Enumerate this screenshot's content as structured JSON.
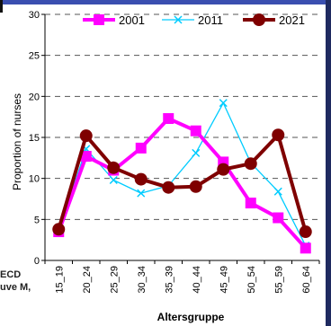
{
  "chart_data": {
    "type": "line",
    "title": "",
    "xlabel": "Altersgruppe",
    "ylabel": "Proportion of nurses",
    "ylim": [
      0,
      30
    ],
    "yticks": [
      0,
      5,
      10,
      15,
      20,
      25,
      30
    ],
    "grid": "horizontal-dashed",
    "legend_position": "top",
    "categories": [
      "15_19",
      "20_24",
      "25_29",
      "30_34",
      "35_39",
      "40_44",
      "45_49",
      "50_54",
      "55_59",
      "60_64"
    ],
    "series": [
      {
        "name": "2001",
        "color": "#ff00ff",
        "marker": "square",
        "values": [
          3.5,
          12.7,
          11.0,
          13.7,
          17.3,
          15.8,
          12.0,
          7.0,
          5.2,
          1.5
        ]
      },
      {
        "name": "2011",
        "color": "#00ccff",
        "marker": "x",
        "values": [
          3.8,
          13.6,
          9.8,
          8.2,
          9.1,
          13.1,
          19.2,
          11.9,
          8.4,
          1.8
        ]
      },
      {
        "name": "2021",
        "color": "#7f0000",
        "marker": "circle",
        "values": [
          3.8,
          15.2,
          11.3,
          9.9,
          8.9,
          9.0,
          11.1,
          11.8,
          15.3,
          3.5
        ]
      }
    ]
  },
  "left_fragments": [
    "ECD",
    "uve M,"
  ]
}
